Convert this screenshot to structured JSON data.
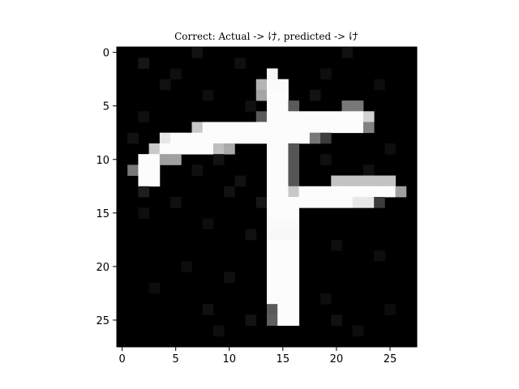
{
  "chart_data": {
    "type": "heatmap",
    "title": "Correct: Actual -> け, predicted -> け",
    "colormap": "gray",
    "rows": 28,
    "cols": 28,
    "xlim": [
      -0.5,
      27.5
    ],
    "ylim": [
      27.5,
      -0.5
    ],
    "x_ticks": [
      0,
      5,
      10,
      15,
      20,
      25
    ],
    "y_ticks": [
      0,
      5,
      10,
      15,
      20,
      25
    ],
    "xlabel": "",
    "ylabel": "",
    "strokes": [
      {
        "row": 2,
        "cols": [
          14
        ],
        "value": 245
      },
      {
        "row": 3,
        "cols": [
          13
        ],
        "value": 180
      },
      {
        "row": 3,
        "cols": [
          14,
          15
        ],
        "value": 250
      },
      {
        "row": 4,
        "cols": [
          13
        ],
        "value": 165
      },
      {
        "row": 4,
        "cols": [
          14,
          15
        ],
        "value": 252
      },
      {
        "row": 5,
        "cols": [
          14,
          15
        ],
        "value": 252
      },
      {
        "row": 5,
        "cols": [
          16
        ],
        "value": 90
      },
      {
        "row": 5,
        "cols": [
          21,
          22
        ],
        "value": 120
      },
      {
        "row": 6,
        "cols": [
          13
        ],
        "value": 90
      },
      {
        "row": 6,
        "cols": [
          14,
          15,
          16,
          17,
          18,
          19,
          20,
          21,
          22
        ],
        "value": 252
      },
      {
        "row": 6,
        "cols": [
          23
        ],
        "value": 210
      },
      {
        "row": 7,
        "cols": [
          7
        ],
        "value": 200
      },
      {
        "row": 7,
        "cols": [
          8,
          9,
          10,
          11,
          12,
          13,
          14,
          15,
          16,
          17,
          18,
          19,
          20,
          21,
          22
        ],
        "value": 252
      },
      {
        "row": 7,
        "cols": [
          23
        ],
        "value": 130
      },
      {
        "row": 8,
        "cols": [
          4
        ],
        "value": 230
      },
      {
        "row": 8,
        "cols": [
          5,
          6,
          7,
          8,
          9,
          10,
          11,
          12,
          13,
          14,
          15,
          16,
          17
        ],
        "value": 252
      },
      {
        "row": 8,
        "cols": [
          18
        ],
        "value": 120
      },
      {
        "row": 8,
        "cols": [
          19
        ],
        "value": 60
      },
      {
        "row": 9,
        "cols": [
          3
        ],
        "value": 200
      },
      {
        "row": 9,
        "cols": [
          4,
          5,
          6,
          7,
          8
        ],
        "value": 252
      },
      {
        "row": 9,
        "cols": [
          9
        ],
        "value": 190
      },
      {
        "row": 9,
        "cols": [
          10
        ],
        "value": 170
      },
      {
        "row": 9,
        "cols": [
          14,
          15
        ],
        "value": 252
      },
      {
        "row": 9,
        "cols": [
          16
        ],
        "value": 85
      },
      {
        "row": 10,
        "cols": [
          2,
          3
        ],
        "value": 252
      },
      {
        "row": 10,
        "cols": [
          4,
          5
        ],
        "value": 160
      },
      {
        "row": 10,
        "cols": [
          14,
          15
        ],
        "value": 252
      },
      {
        "row": 10,
        "cols": [
          16
        ],
        "value": 85
      },
      {
        "row": 11,
        "cols": [
          1
        ],
        "value": 120
      },
      {
        "row": 11,
        "cols": [
          2,
          3
        ],
        "value": 252
      },
      {
        "row": 11,
        "cols": [
          14,
          15
        ],
        "value": 252
      },
      {
        "row": 11,
        "cols": [
          16
        ],
        "value": 85
      },
      {
        "row": 12,
        "cols": [
          2,
          3
        ],
        "value": 252
      },
      {
        "row": 12,
        "cols": [
          14,
          15
        ],
        "value": 252
      },
      {
        "row": 12,
        "cols": [
          16
        ],
        "value": 85
      },
      {
        "row": 12,
        "cols": [
          20,
          21,
          22,
          23,
          24,
          25
        ],
        "value": 195
      },
      {
        "row": 13,
        "cols": [
          2
        ],
        "value": 30
      },
      {
        "row": 13,
        "cols": [
          14,
          15
        ],
        "value": 252
      },
      {
        "row": 13,
        "cols": [
          16
        ],
        "value": 200
      },
      {
        "row": 13,
        "cols": [
          17,
          18,
          19,
          20,
          21,
          22,
          23,
          24,
          25
        ],
        "value": 252
      },
      {
        "row": 13,
        "cols": [
          26
        ],
        "value": 160
      },
      {
        "row": 14,
        "cols": [
          14,
          15,
          16,
          17,
          18,
          19,
          20,
          21
        ],
        "value": 252
      },
      {
        "row": 14,
        "cols": [
          22,
          23
        ],
        "value": 232
      },
      {
        "row": 14,
        "cols": [
          24
        ],
        "value": 60
      },
      {
        "row": 15,
        "cols": [
          14,
          15,
          16
        ],
        "value": 252
      },
      {
        "row": 16,
        "cols": [
          14,
          15,
          16
        ],
        "value": 250
      },
      {
        "row": 17,
        "cols": [
          14,
          15,
          16
        ],
        "value": 248
      },
      {
        "row": 18,
        "cols": [
          14,
          15,
          16
        ],
        "value": 252
      },
      {
        "row": 19,
        "cols": [
          14,
          15,
          16
        ],
        "value": 252
      },
      {
        "row": 20,
        "cols": [
          14,
          15,
          16
        ],
        "value": 252
      },
      {
        "row": 21,
        "cols": [
          14,
          15,
          16
        ],
        "value": 252
      },
      {
        "row": 22,
        "cols": [
          14,
          15,
          16
        ],
        "value": 252
      },
      {
        "row": 23,
        "cols": [
          14,
          15,
          16
        ],
        "value": 252
      },
      {
        "row": 24,
        "cols": [
          14
        ],
        "value": 90
      },
      {
        "row": 24,
        "cols": [
          15,
          16
        ],
        "value": 252
      },
      {
        "row": 25,
        "cols": [
          14
        ],
        "value": 95
      },
      {
        "row": 25,
        "cols": [
          15,
          16
        ],
        "value": 252
      }
    ],
    "noise": [
      {
        "row": 1,
        "col": 2,
        "value": 22
      },
      {
        "row": 0,
        "col": 7,
        "value": 18
      },
      {
        "row": 2,
        "col": 5,
        "value": 15
      },
      {
        "row": 3,
        "col": 4,
        "value": 16
      },
      {
        "row": 4,
        "col": 8,
        "value": 14
      },
      {
        "row": 1,
        "col": 11,
        "value": 15
      },
      {
        "row": 0,
        "col": 21,
        "value": 16
      },
      {
        "row": 2,
        "col": 19,
        "value": 14
      },
      {
        "row": 4,
        "col": 18,
        "value": 18
      },
      {
        "row": 3,
        "col": 24,
        "value": 13
      },
      {
        "row": 6,
        "col": 2,
        "value": 15
      },
      {
        "row": 8,
        "col": 1,
        "value": 17
      },
      {
        "row": 10,
        "col": 9,
        "value": 18
      },
      {
        "row": 11,
        "col": 7,
        "value": 16
      },
      {
        "row": 12,
        "col": 11,
        "value": 17
      },
      {
        "row": 10,
        "col": 19,
        "value": 15
      },
      {
        "row": 11,
        "col": 23,
        "value": 16
      },
      {
        "row": 9,
        "col": 25,
        "value": 14
      },
      {
        "row": 14,
        "col": 5,
        "value": 16
      },
      {
        "row": 13,
        "col": 10,
        "value": 18
      },
      {
        "row": 15,
        "col": 2,
        "value": 14
      },
      {
        "row": 16,
        "col": 8,
        "value": 13
      },
      {
        "row": 17,
        "col": 12,
        "value": 16
      },
      {
        "row": 18,
        "col": 20,
        "value": 14
      },
      {
        "row": 19,
        "col": 24,
        "value": 13
      },
      {
        "row": 20,
        "col": 6,
        "value": 12
      },
      {
        "row": 21,
        "col": 10,
        "value": 15
      },
      {
        "row": 22,
        "col": 3,
        "value": 12
      },
      {
        "row": 23,
        "col": 19,
        "value": 13
      },
      {
        "row": 24,
        "col": 8,
        "value": 16
      },
      {
        "row": 25,
        "col": 12,
        "value": 18
      },
      {
        "row": 26,
        "col": 9,
        "value": 14
      },
      {
        "row": 25,
        "col": 20,
        "value": 17
      },
      {
        "row": 26,
        "col": 22,
        "value": 13
      },
      {
        "row": 24,
        "col": 25,
        "value": 12
      },
      {
        "row": 5,
        "col": 12,
        "value": 16
      },
      {
        "row": 14,
        "col": 13,
        "value": 22
      }
    ]
  }
}
